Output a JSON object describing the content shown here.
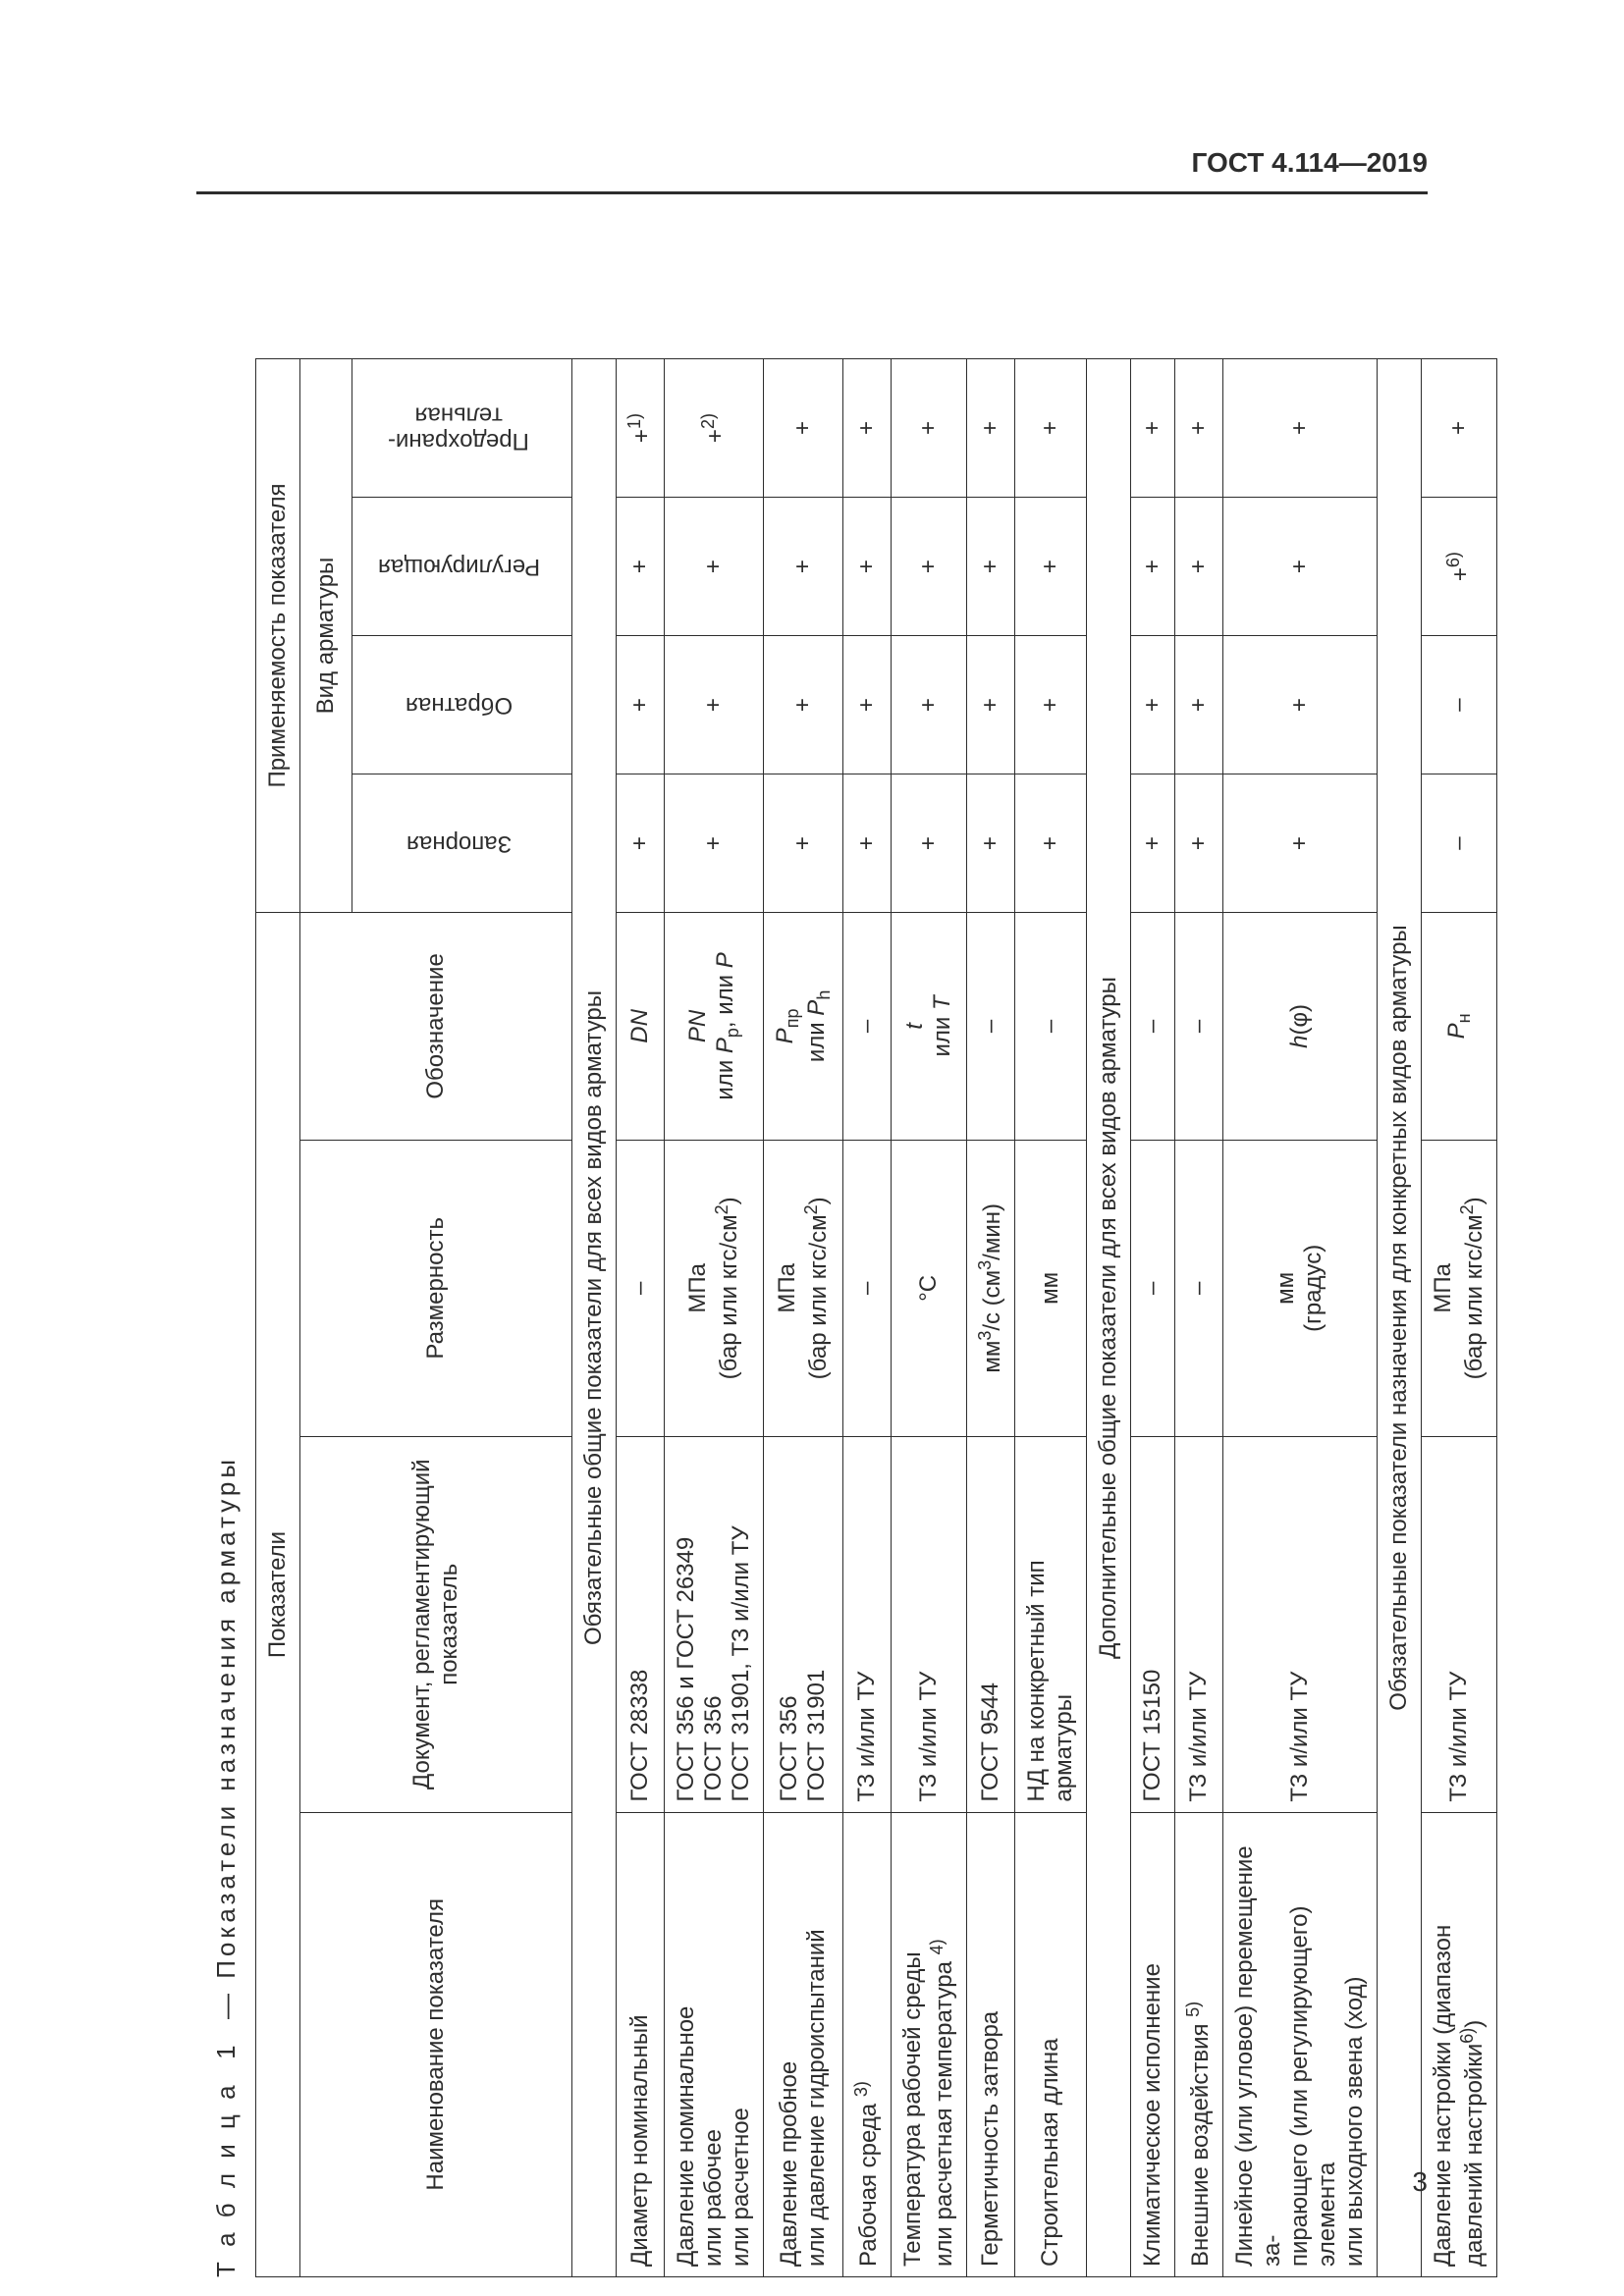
{
  "doc_id": "ГОСТ 4.114—2019",
  "page_number": "3",
  "table": {
    "caption_prefix": "Т а б л и ц а",
    "caption_number": "1",
    "caption_title": "— Показатели назначения арматуры",
    "head": {
      "indicators": "Показатели",
      "applicability": "Применяемость показателя",
      "name": "Наименование показателя",
      "doc": "Документ, регламентирующий показатель",
      "dim": "Размерность",
      "sym": "Обозначение",
      "type": "Вид арматуры",
      "zapornaya": "Запорная",
      "obratnaya": "Обратная",
      "regul": "Регулирующая",
      "predohr": "Предохрани-\nтельная"
    },
    "sections": [
      {
        "title": "Обязательные общие показатели для всех видов арматуры",
        "rows": [
          {
            "name_html": "Диаметр номинальный",
            "doc_html": "ГОСТ 28338",
            "dim_html": "–",
            "sym_html": "<span class='ital'>DN</span>",
            "app": [
              "+",
              "+",
              "+",
              "+<span class='sup'>1)</span>"
            ]
          },
          {
            "name_html": "Давление номинальное<br>или рабочее<br>или расчетное",
            "doc_html": "ГОСТ 356 и ГОСТ 26349<br>ГОСТ 356<br>ГОСТ 31901, ТЗ и/или ТУ",
            "dim_html": "МПа<br>(бар или кгс/см<span class='sup'>2</span>)",
            "sym_html": "<span class='ital'>PN</span><br>или <span class='ital'>P</span><span class='sub'>р</span>, или <span class='ital'>P</span>",
            "app": [
              "+",
              "+",
              "+",
              "+<span class='sup'>2)</span>"
            ]
          },
          {
            "name_html": "Давление пробное<br>или давление гидроиспытаний",
            "doc_html": "ГОСТ 356<br>ГОСТ 31901",
            "dim_html": "МПа<br>(бар или кгс/см<span class='sup'>2</span>)",
            "sym_html": "<span class='ital'>P</span><span class='sub'>пр</span><br>или <span class='ital'>P</span><span class='sub'>h</span>",
            "app": [
              "+",
              "+",
              "+",
              "+"
            ]
          },
          {
            "name_html": "Рабочая среда <span class='sup'>3)</span>",
            "doc_html": "ТЗ и/или ТУ",
            "dim_html": "–",
            "sym_html": "–",
            "app": [
              "+",
              "+",
              "+",
              "+"
            ]
          },
          {
            "name_html": "Температура рабочей среды<br>или расчетная температура <span class='sup'>4)</span>",
            "doc_html": "ТЗ и/или ТУ",
            "dim_html": "°С",
            "sym_html": "<span class='ital'>t</span><br>или <span class='ital'>T</span>",
            "app": [
              "+",
              "+",
              "+",
              "+"
            ]
          },
          {
            "name_html": "Герметичность затвора",
            "doc_html": "ГОСТ 9544",
            "dim_html": "мм<span class='sup'>3</span>/с (см<span class='sup'>3</span>/мин)",
            "sym_html": "–",
            "app": [
              "+",
              "+",
              "+",
              "+"
            ]
          },
          {
            "name_html": "Строительная длина",
            "doc_html": "НД на конкретный тип арматуры",
            "dim_html": "мм",
            "sym_html": "–",
            "app": [
              "+",
              "+",
              "+",
              "+"
            ]
          }
        ]
      },
      {
        "title": "Дополнительные общие показатели для всех видов арматуры",
        "rows": [
          {
            "name_html": "Климатическое исполнение",
            "doc_html": "ГОСТ 15150",
            "dim_html": "–",
            "sym_html": "–",
            "app": [
              "+",
              "+",
              "+",
              "+"
            ]
          },
          {
            "name_html": "Внешние воздействия <span class='sup'>5)</span>",
            "doc_html": "ТЗ и/или ТУ",
            "dim_html": "–",
            "sym_html": "–",
            "app": [
              "+",
              "+",
              "+",
              "+"
            ]
          },
          {
            "name_html": "Линейное (или угловое) перемещение за-<br>пирающего (или регулирующего) элемента<br>или выходного звена (ход)",
            "doc_html": "ТЗ и/или ТУ",
            "dim_html": "мм<br>(градус)",
            "sym_html": "<span class='ital'>h</span>(φ)",
            "app": [
              "+",
              "+",
              "+",
              "+"
            ]
          }
        ]
      },
      {
        "title": "Обязательные показатели назначения для конкретных видов арматуры",
        "rows": [
          {
            "name_html": "Давление настройки (диапазон давлений настройки<span class='sup'>6)</span>)",
            "doc_html": "ТЗ и/или ТУ",
            "dim_html": "МПа<br>(бар или кгс/см<span class='sup'>2</span>)",
            "sym_html": "<span class='ital'>P</span><span class='sub'>н</span>",
            "app": [
              "–",
              "–",
              "+<span class='sup'>6)</span>",
              "+"
            ]
          }
        ]
      }
    ]
  }
}
